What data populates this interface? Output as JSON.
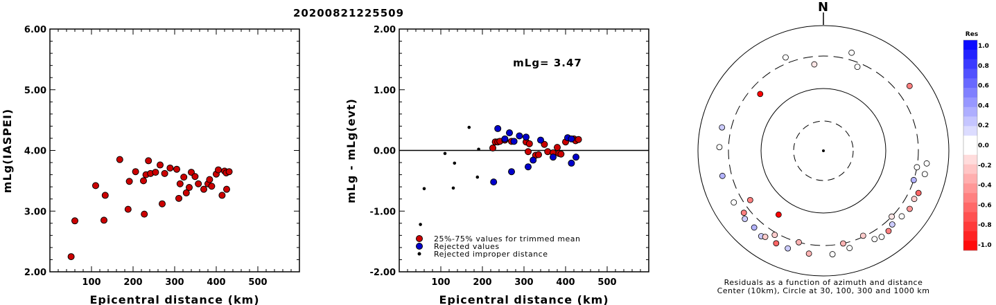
{
  "title": "20200821225509",
  "chart_data": [
    {
      "type": "scatter",
      "xlabel": "Epicentral distance (km)",
      "ylabel": "mLg(IASPEI)",
      "xlim": [
        0,
        600
      ],
      "ylim": [
        2.0,
        6.0
      ],
      "xticks": [
        "100",
        "200",
        "300",
        "400",
        "500"
      ],
      "yticks": [
        "2.00",
        "3.00",
        "4.00",
        "5.00",
        "6.00"
      ],
      "series": [
        {
          "color": "#cc0000",
          "points": [
            [
              51,
              2.25
            ],
            [
              60,
              2.84
            ],
            [
              110,
              3.42
            ],
            [
              130,
              2.85
            ],
            [
              133,
              3.26
            ],
            [
              168,
              3.85
            ],
            [
              188,
              3.03
            ],
            [
              191,
              3.49
            ],
            [
              206,
              3.65
            ],
            [
              225,
              3.5
            ],
            [
              227,
              2.95
            ],
            [
              231,
              3.6
            ],
            [
              237,
              3.83
            ],
            [
              242,
              3.62
            ],
            [
              254,
              3.64
            ],
            [
              265,
              3.76
            ],
            [
              270,
              3.12
            ],
            [
              276,
              3.62
            ],
            [
              289,
              3.71
            ],
            [
              305,
              3.69
            ],
            [
              310,
              3.21
            ],
            [
              313,
              3.45
            ],
            [
              322,
              3.56
            ],
            [
              328,
              3.3
            ],
            [
              335,
              3.39
            ],
            [
              340,
              3.64
            ],
            [
              349,
              3.57
            ],
            [
              357,
              3.45
            ],
            [
              370,
              3.36
            ],
            [
              380,
              3.45
            ],
            [
              384,
              3.52
            ],
            [
              389,
              3.41
            ],
            [
              400,
              3.61
            ],
            [
              405,
              3.68
            ],
            [
              414,
              3.26
            ],
            [
              420,
              3.66
            ],
            [
              424,
              3.63
            ],
            [
              425,
              3.36
            ],
            [
              431,
              3.65
            ]
          ]
        }
      ]
    },
    {
      "type": "scatter",
      "xlabel": "Epicentral distance (km)",
      "ylabel": "mLg - mLg(evt)",
      "xlim": [
        0,
        600
      ],
      "ylim": [
        -2.0,
        2.0
      ],
      "xticks": [
        "100",
        "200",
        "300",
        "400",
        "500"
      ],
      "yticks": [
        "-2.00",
        "-1.00",
        "0.00",
        "1.00",
        "2.00"
      ],
      "annotation": "mLg= 3.47",
      "legend": [
        "25%-75% values for trimmed mean",
        "Rejected values",
        "Rejected improper distance"
      ],
      "series": [
        {
          "name": "25%-75% values for trimmed mean",
          "color": "#cc0000",
          "points": [
            [
              225,
              0.04
            ],
            [
              231,
              0.14
            ],
            [
              237,
              0.14
            ],
            [
              242,
              0.15
            ],
            [
              254,
              0.17
            ],
            [
              270,
              0.15
            ],
            [
              305,
              0.14
            ],
            [
              310,
              -0.02
            ],
            [
              313,
              0.11
            ],
            [
              328,
              -0.08
            ],
            [
              335,
              -0.07
            ],
            [
              349,
              0.1
            ],
            [
              357,
              -0.02
            ],
            [
              370,
              -0.04
            ],
            [
              380,
              0.05
            ],
            [
              384,
              -0.05
            ],
            [
              389,
              -0.06
            ],
            [
              400,
              0.14
            ],
            [
              420,
              0.19
            ],
            [
              424,
              0.16
            ],
            [
              431,
              0.18
            ]
          ]
        },
        {
          "name": "Rejected values",
          "color": "#0000cc",
          "points": [
            [
              227,
              -0.52
            ],
            [
              237,
              0.36
            ],
            [
              254,
              0.19
            ],
            [
              265,
              0.29
            ],
            [
              270,
              -0.35
            ],
            [
              276,
              0.15
            ],
            [
              289,
              0.24
            ],
            [
              305,
              0.22
            ],
            [
              310,
              -0.27
            ],
            [
              322,
              -0.16
            ],
            [
              340,
              0.17
            ],
            [
              370,
              -0.11
            ],
            [
              405,
              0.21
            ],
            [
              414,
              -0.21
            ],
            [
              414,
              0.19
            ],
            [
              425,
              -0.11
            ]
          ]
        },
        {
          "name": "Rejected improper distance",
          "color": "#000000",
          "points": [
            [
              51,
              -1.22
            ],
            [
              60,
              -0.63
            ],
            [
              110,
              -0.05
            ],
            [
              130,
              -0.62
            ],
            [
              133,
              -0.21
            ],
            [
              168,
              0.38
            ],
            [
              188,
              -0.44
            ],
            [
              191,
              0.02
            ]
          ]
        }
      ]
    },
    {
      "type": "polar",
      "north_label": "N",
      "caption_line1": "Residuals as a function of azimuth and distance",
      "caption_line2": "Center (10km), Circle at 30, 100, 300 and 1000 km",
      "points": [
        {
          "az": 207,
          "dist": 430,
          "res": -0.6
        },
        {
          "az": 215,
          "dist": 170,
          "res": -1.0
        },
        {
          "az": 312,
          "dist": 215,
          "res": -1.0
        },
        {
          "az": 16,
          "dist": 400,
          "res": 0.0
        },
        {
          "az": 22,
          "dist": 260,
          "res": 0.0
        },
        {
          "az": 338,
          "dist": 380,
          "res": 0.0
        },
        {
          "az": 354,
          "dist": 230,
          "res": -0.1
        },
        {
          "az": 53,
          "dist": 500,
          "res": -0.5
        },
        {
          "az": 283,
          "dist": 430,
          "res": 0.2
        },
        {
          "az": 272,
          "dist": 430,
          "res": 0.0
        },
        {
          "az": 256,
          "dist": 430,
          "res": 0.3
        },
        {
          "az": 240,
          "dist": 420,
          "res": 0.0
        },
        {
          "az": 232,
          "dist": 380,
          "res": -0.5
        },
        {
          "az": 229,
          "dist": 430,
          "res": 0.2
        },
        {
          "az": 222,
          "dist": 420,
          "res": 0.3
        },
        {
          "az": 216,
          "dist": 460,
          "res": 0.2
        },
        {
          "az": 214,
          "dist": 430,
          "res": -0.2
        },
        {
          "az": 236,
          "dist": 240,
          "res": -0.5
        },
        {
          "az": 210,
          "dist": 330,
          "res": -0.2
        },
        {
          "az": 195,
          "dist": 300,
          "res": -0.3
        },
        {
          "az": 200,
          "dist": 430,
          "res": 0.2
        },
        {
          "az": 188,
          "dist": 430,
          "res": -0.3
        },
        {
          "az": 175,
          "dist": 430,
          "res": 0.0
        },
        {
          "az": 168,
          "dist": 300,
          "res": -0.3
        },
        {
          "az": 165,
          "dist": 380,
          "res": 0.0
        },
        {
          "az": 155,
          "dist": 290,
          "res": -0.2
        },
        {
          "az": 150,
          "dist": 400,
          "res": 0.0
        },
        {
          "az": 146,
          "dist": 430,
          "res": 0.0
        },
        {
          "az": 137,
          "dist": 380,
          "res": 0.2
        },
        {
          "az": 141,
          "dist": 420,
          "res": -0.5
        },
        {
          "az": 134,
          "dist": 300,
          "res": -0.1
        },
        {
          "az": 130,
          "dist": 400,
          "res": 0.0
        },
        {
          "az": 124,
          "dist": 430,
          "res": -0.4
        },
        {
          "az": 118,
          "dist": 410,
          "res": -0.2
        },
        {
          "az": 114,
          "dist": 430,
          "res": -0.6
        },
        {
          "az": 108,
          "dist": 300,
          "res": 0.3
        },
        {
          "az": 100,
          "dist": 300,
          "res": 0.0
        },
        {
          "az": 103,
          "dist": 430,
          "res": 0.0
        },
        {
          "az": 97,
          "dist": 430,
          "res": 0.0
        }
      ]
    }
  ],
  "colorbar": {
    "title": "Res",
    "labels": [
      "1.0",
      "0.8",
      "0.6",
      "0.4",
      "0.2",
      "0.0",
      "-0.2",
      "-0.4",
      "-0.6",
      "-0.8",
      "-1.0"
    ]
  }
}
